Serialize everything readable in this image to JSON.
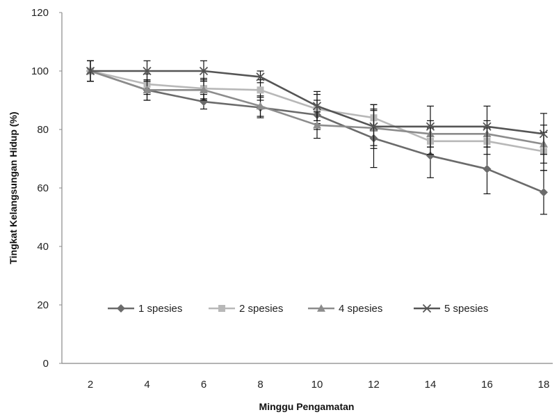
{
  "chart_data": {
    "type": "line",
    "title": "",
    "xlabel": "Minggu Pengamatan",
    "ylabel": "Tingkat Kelangsungan Hidup (%)",
    "x": [
      2,
      4,
      6,
      8,
      10,
      12,
      14,
      16,
      18
    ],
    "x_ticks": [
      "2",
      "4",
      "6",
      "8",
      "10",
      "12",
      "14",
      "16",
      "18"
    ],
    "ylim": [
      0,
      120
    ],
    "y_ticks": [
      "0",
      "20",
      "40",
      "60",
      "80",
      "100",
      "120"
    ],
    "grid": false,
    "legend_position": "inside-bottom-left",
    "series": [
      {
        "name": "1 spesies",
        "marker": "diamond",
        "color": "#6b6b6b",
        "values": [
          100,
          93.5,
          89.5,
          87.5,
          85,
          77,
          71,
          66.5,
          58.5
        ],
        "errors": [
          3.5,
          3.5,
          2.5,
          3.5,
          5,
          10,
          7.5,
          8.5,
          7.5
        ]
      },
      {
        "name": "2 spesies",
        "marker": "square",
        "color": "#b8b8b8",
        "values": [
          100,
          95.5,
          94,
          93.5,
          87,
          84,
          76,
          76,
          72.5
        ],
        "errors": [
          3.5,
          3.5,
          3.5,
          3.5,
          5,
          4.5,
          4.5,
          4.5,
          6.5
        ]
      },
      {
        "name": "4 spesies",
        "marker": "triangle",
        "color": "#8c8c8c",
        "values": [
          100,
          93.5,
          93.5,
          88,
          81.5,
          80.5,
          78.5,
          78.5,
          75
        ],
        "errors": [
          3.5,
          3.5,
          3.5,
          3.5,
          4.5,
          6,
          4.5,
          4.5,
          6.5
        ]
      },
      {
        "name": "5 spesies",
        "marker": "x",
        "color": "#555555",
        "values": [
          100,
          100,
          100,
          98,
          88,
          81,
          81,
          81,
          78.5
        ],
        "errors": [
          3.5,
          3.5,
          3.5,
          2,
          5,
          7.5,
          7,
          7,
          7
        ]
      }
    ]
  }
}
